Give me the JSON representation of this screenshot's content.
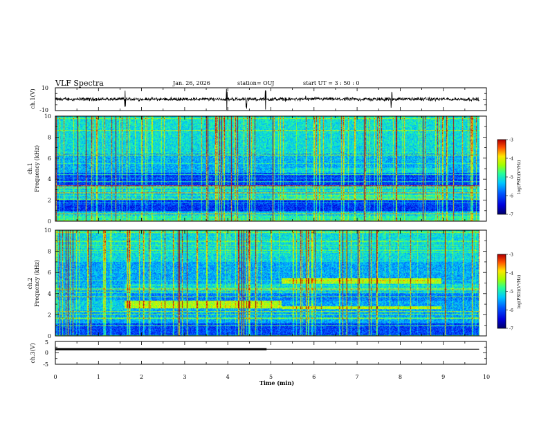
{
  "header": {
    "title": "VLF Spectra",
    "date": "Jan. 26, 2026",
    "station": "station= OUJ",
    "start_ut": "start  UT =  3 : 50 : 0"
  },
  "chart_data": [
    {
      "type": "line",
      "id": "ch1-waveform",
      "ylabel": "ch.1(V)",
      "ylim": [
        -10,
        10
      ],
      "ytick_labels": [
        "10",
        "-10"
      ],
      "x_range_min": [
        0,
        9.83
      ],
      "baseline_v": 0,
      "spike_times_min": [
        1.62,
        3.98,
        4.43,
        4.88,
        7.8
      ]
    },
    {
      "type": "heatmap",
      "id": "ch1-spectrogram",
      "ylabel_line1": "ch.1",
      "ylabel_line2": "Frequency (kHz)",
      "ylim": [
        0,
        10
      ],
      "ytick_labels": [
        "0",
        "2",
        "4",
        "6",
        "8",
        "10"
      ],
      "colorbar": {
        "label": "log(PSD)(V²/Hz)",
        "range": [
          -7,
          -3
        ],
        "tick_labels": [
          "-3",
          "-4",
          "-5",
          "-6",
          "-7"
        ]
      },
      "quiet_bands_khz": [
        [
          3.4,
          4.6
        ],
        [
          0.9,
          2.0
        ]
      ]
    },
    {
      "type": "heatmap",
      "id": "ch2-spectrogram",
      "ylabel_line1": "ch.2",
      "ylabel_line2": "Frequency (kHz)",
      "ylim": [
        0,
        10
      ],
      "ytick_labels": [
        "0",
        "2",
        "4",
        "6",
        "8",
        "10"
      ],
      "colorbar": {
        "label": "log(PSD)(V²/Hz)",
        "range": [
          -7,
          -3
        ],
        "tick_labels": [
          "-3",
          "-4",
          "-5",
          "-6",
          "-7"
        ]
      },
      "bright_bands": [
        {
          "t_min": [
            5.25,
            8.95
          ],
          "f_khz": [
            4.9,
            5.5
          ]
        },
        {
          "t_min": [
            5.25,
            8.95
          ],
          "f_khz": [
            2.5,
            2.8
          ]
        },
        {
          "t_min": [
            1.6,
            5.25
          ],
          "f_khz": [
            2.6,
            3.3
          ]
        }
      ]
    },
    {
      "type": "line",
      "id": "ch3-waveform",
      "ylabel": "ch.3(V)",
      "ylim": [
        -5,
        5
      ],
      "ytick_labels": [
        "5",
        "0",
        "-5"
      ],
      "x_range_min": [
        0,
        9.83
      ],
      "level_v": 1.6,
      "thick_segment_min": [
        0,
        4.9
      ]
    }
  ],
  "xaxis": {
    "label": "Time (min)",
    "range": [
      0,
      10
    ],
    "tick_labels": [
      "0",
      "1",
      "2",
      "3",
      "4",
      "5",
      "6",
      "7",
      "8",
      "9",
      "10"
    ]
  }
}
